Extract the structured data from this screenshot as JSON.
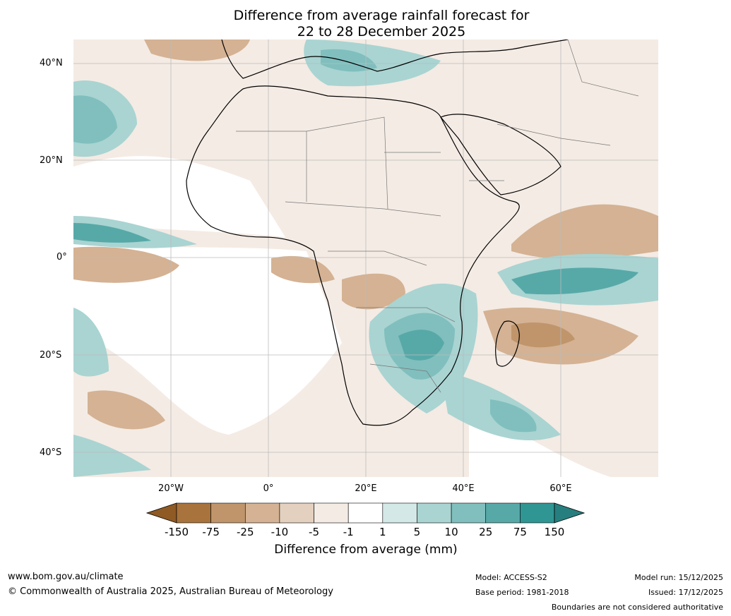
{
  "title": {
    "line1": "Difference from average rainfall forecast for",
    "line2": "22 to 28 December 2025"
  },
  "map": {
    "region": "Africa",
    "lat_ticks": [
      "40°N",
      "20°N",
      "0°",
      "20°S",
      "40°S"
    ],
    "lon_ticks": [
      "20°W",
      "0°",
      "20°E",
      "40°E",
      "60°E"
    ]
  },
  "legend": {
    "title": "Difference from average (mm)",
    "labels": [
      "-150",
      "-75",
      "-25",
      "-10",
      "-5",
      "-1",
      "1",
      "5",
      "10",
      "25",
      "75",
      "150"
    ],
    "colors": [
      "#a8733c",
      "#c0956b",
      "#d4b293",
      "#e4d0bf",
      "#f4ebe4",
      "#ffffff",
      "#d3e8e7",
      "#a9d4d2",
      "#80bfbe",
      "#57a9a8",
      "#2f9694"
    ],
    "low_arrow_color": "#8f5a24",
    "high_arrow_color": "#267f7e"
  },
  "footer": {
    "website": "www.bom.gov.au/climate",
    "copyright": "© Commonwealth of Australia 2025, Australian Bureau of Meteorology",
    "model": "Model: ACCESS-S2",
    "base_period": "Base period: 1981-2018",
    "model_run": "Model run: 15/12/2025",
    "issued": "Issued: 17/12/2025",
    "disclaimer": "Boundaries are not considered authoritative"
  }
}
